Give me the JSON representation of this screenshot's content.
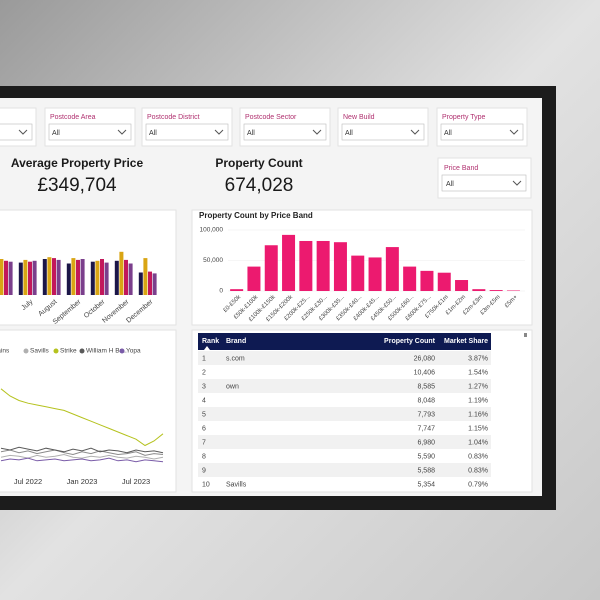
{
  "filters": [
    {
      "value": "All"
    },
    {
      "label": "Postcode Area",
      "value": "All"
    },
    {
      "label": "Postcode District",
      "value": "All"
    },
    {
      "label": "Postcode Sector",
      "value": "All"
    },
    {
      "label": "New Build",
      "value": "All"
    },
    {
      "label": "Property Type",
      "value": "All"
    }
  ],
  "kpis": [
    {
      "label": "Average Property Price",
      "value": "£349,704"
    },
    {
      "label": "Property Count",
      "value": "674,028"
    }
  ],
  "price_band_filter": {
    "label": "Price Band",
    "value": "All"
  },
  "month_chart": {
    "type": "bar",
    "categories": [
      null,
      "July",
      "August",
      "September",
      "October",
      "November",
      "December"
    ],
    "ylim": [
      0,
      100
    ],
    "series": [
      {
        "color": "#1b1648",
        "values": [
          78,
          72,
          80,
          70,
          74,
          76,
          50
        ]
      },
      {
        "color": "#d9a514",
        "values": [
          80,
          78,
          84,
          82,
          76,
          96,
          82
        ]
      },
      {
        "color": "#c2185b",
        "values": [
          76,
          74,
          82,
          78,
          80,
          78,
          52
        ]
      },
      {
        "color": "#7b3f8c",
        "values": [
          74,
          76,
          78,
          80,
          72,
          70,
          48
        ]
      }
    ]
  },
  "price_band_chart": {
    "type": "bar",
    "title": "Property Count by Price Band",
    "categories": [
      "£0-£50k",
      "£50k-£100k",
      "£100k-£150k",
      "£150k-£200k",
      "£200k-£25...",
      "£250k-£30...",
      "£300k-£35...",
      "£350k-£40...",
      "£400k-£45...",
      "£450k-£50...",
      "£500k-£60...",
      "£600k-£75...",
      "£750k-£1m",
      "£1m-£2m",
      "£2m-£3m",
      "£3m-£5m",
      "£5m+"
    ],
    "values": [
      3000,
      40000,
      75000,
      92000,
      82000,
      82000,
      80000,
      58000,
      55000,
      72000,
      40000,
      33000,
      30000,
      18000,
      3000,
      1500,
      800
    ],
    "color": "#ec1a6f",
    "ylim": [
      0,
      100000
    ],
    "yticks": [
      0,
      {
        "value": 50000,
        "label": "50,000"
      },
      {
        "value": 100000,
        "label": "100,000"
      }
    ]
  },
  "brand_table": {
    "columns": [
      "Rank",
      "Brand",
      "Property Count",
      "Market Share"
    ],
    "rows": [
      [
        "1",
        "s.com",
        "26,080",
        "3.87%"
      ],
      [
        "2",
        null,
        "10,406",
        "1.54%"
      ],
      [
        "3",
        "own",
        "8,585",
        "1.27%"
      ],
      [
        "4",
        null,
        "8,048",
        "1.19%"
      ],
      [
        "5",
        null,
        "7,793",
        "1.16%"
      ],
      [
        "6",
        null,
        "7,747",
        "1.15%"
      ],
      [
        "7",
        null,
        "6,980",
        "1.04%"
      ],
      [
        "8",
        null,
        "5,590",
        "0.83%"
      ],
      [
        "9",
        null,
        "5,588",
        "0.83%"
      ],
      [
        "10",
        "Savills",
        "5,354",
        "0.79%"
      ]
    ]
  },
  "brand_line_chart": {
    "type": "line",
    "categories": [
      null,
      null,
      null,
      "Jul 2022",
      null,
      null,
      null,
      null,
      null,
      "Jan 2023",
      null,
      null,
      null,
      null,
      null,
      "Jul 2023",
      null,
      null,
      null
    ],
    "ylim": [
      0,
      100
    ],
    "series": [
      {
        "name": "Reeds Rains",
        "color": "#8a8a8a",
        "values": [
          18,
          20,
          17,
          19,
          16,
          18,
          20,
          17,
          15,
          18,
          16,
          19,
          17,
          15,
          16,
          18,
          14,
          16,
          15
        ]
      },
      {
        "name": "Savills",
        "color": "#b0b0b0",
        "values": [
          12,
          14,
          13,
          11,
          14,
          12,
          13,
          15,
          12,
          11,
          13,
          12,
          14,
          12,
          11,
          13,
          12,
          10,
          12
        ]
      },
      {
        "name": "Strike",
        "color": "#b5c21e",
        "values": [
          88,
          80,
          75,
          72,
          70,
          68,
          66,
          64,
          60,
          56,
          52,
          48,
          44,
          40,
          36,
          32,
          25,
          30,
          38
        ]
      },
      {
        "name": "William H Br...",
        "color": "#5a5a5a",
        "values": [
          22,
          20,
          23,
          21,
          19,
          22,
          20,
          18,
          21,
          19,
          22,
          18,
          20,
          19,
          17,
          20,
          18,
          19,
          17
        ]
      },
      {
        "name": "Yopa",
        "color": "#7a5ca8",
        "values": [
          8,
          10,
          9,
          11,
          8,
          9,
          10,
          8,
          9,
          10,
          8,
          9,
          11,
          8,
          9,
          7,
          9,
          8,
          7
        ]
      }
    ]
  }
}
